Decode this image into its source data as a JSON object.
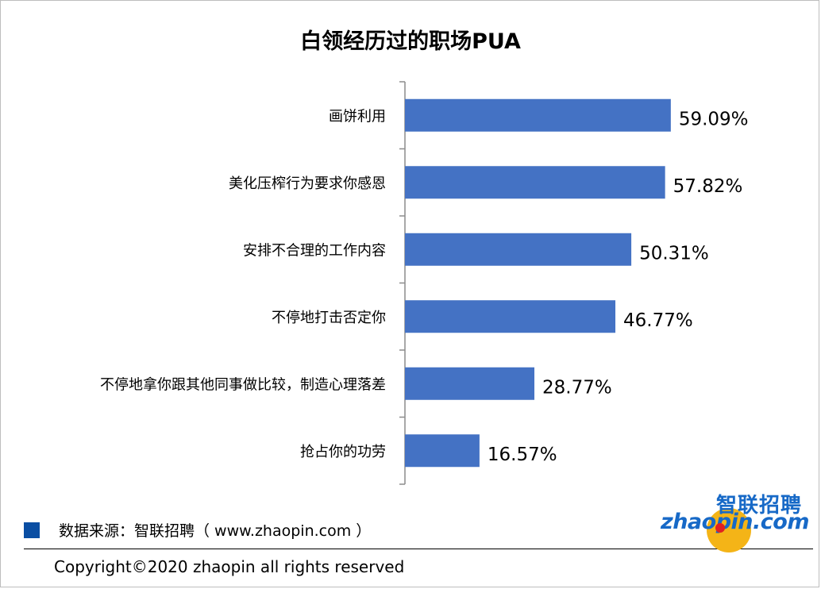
{
  "chart_data": {
    "type": "bar",
    "orientation": "horizontal",
    "title": "白领经历过的职场PUA",
    "categories": [
      "画饼利用",
      "美化压榨行为要求你感恩",
      "安排不合理的工作内容",
      "不停地打击否定你",
      "不停地拿你跟其他同事做比较，制造心理落差",
      "抢占你的功劳"
    ],
    "values": [
      59.09,
      57.82,
      50.31,
      46.77,
      28.77,
      16.57
    ],
    "value_labels": [
      "59.09%",
      "57.82%",
      "50.31%",
      "46.77%",
      "28.77%",
      "16.57%"
    ],
    "xlim": [
      0,
      60
    ],
    "grid": false,
    "bar_color": "#4472c4"
  },
  "footer": {
    "source": "数据来源：智联招聘（ www.zhaopin.com ）",
    "copyright": "Copyright©2020 zhaopin all rights reserved",
    "source_swatch_color": "#0a4ea3"
  },
  "logo": {
    "cn_text": "智联招聘",
    "en_text": "zhaopin.com",
    "icon": "zhaopin-logo-icon"
  }
}
